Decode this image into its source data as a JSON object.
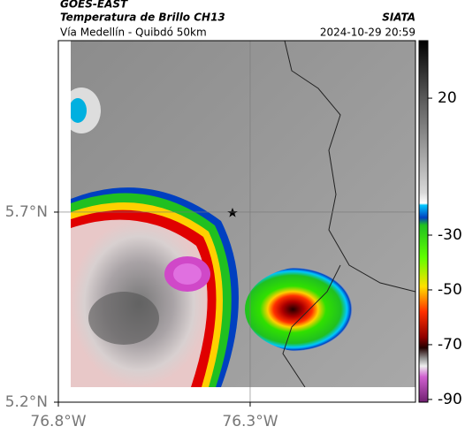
{
  "header": {
    "title": "GOES-EAST",
    "subtitle": "Temperatura de Brillo CH13",
    "location": "Vía Medellín - Quibdó 50km",
    "source": "SIATA",
    "timestamp": "2024-10-29 20:59"
  },
  "map": {
    "xlim": [
      -76.8,
      -75.869
    ],
    "ylim": [
      5.2,
      6.151
    ],
    "xticks": [
      {
        "value": -76.8,
        "label": "76.8°W"
      },
      {
        "value": -76.3,
        "label": "76.3°W"
      }
    ],
    "yticks": [
      {
        "value": 5.7,
        "label": "5.7°N"
      },
      {
        "value": 5.2,
        "label": "5.2°N"
      }
    ]
  },
  "colorbar": {
    "lim": [
      -91,
      41
    ],
    "ticks": [
      20,
      -30,
      -50,
      -70,
      -90
    ]
  }
}
